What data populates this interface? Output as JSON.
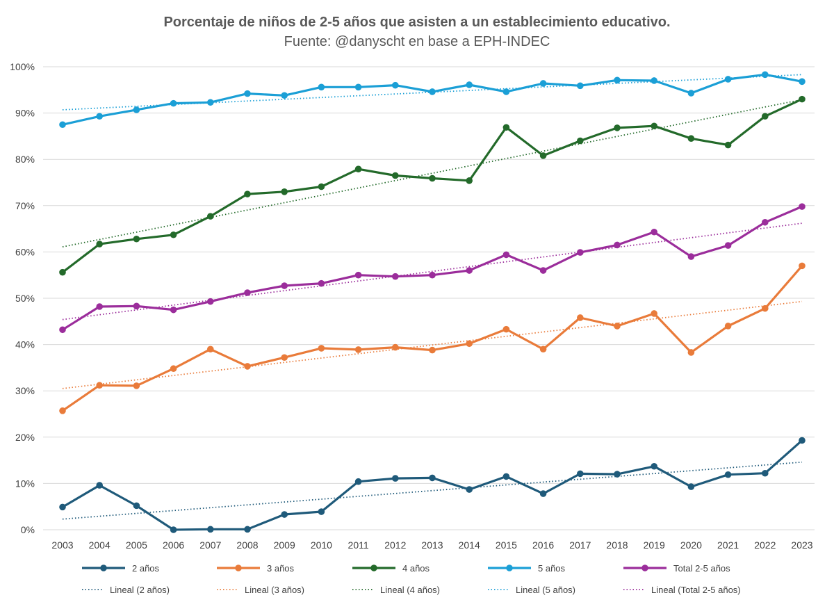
{
  "chart_data": {
    "type": "line",
    "title": "Porcentaje de niños de 2-5 años que asisten a un establecimiento educativo.",
    "subtitle": "Fuente: @danyscht en base a EPH-INDEC",
    "x": [
      "2003",
      "2004",
      "2005",
      "2006",
      "2007",
      "2008",
      "2009",
      "2010",
      "2011",
      "2012",
      "2013",
      "2014",
      "2015",
      "2016",
      "2017",
      "2018",
      "2019",
      "2020",
      "2021",
      "2022",
      "2023"
    ],
    "ylim": [
      0,
      100
    ],
    "yticks": [
      0,
      10,
      20,
      30,
      40,
      50,
      60,
      70,
      80,
      90,
      100
    ],
    "ytick_labels": [
      "0%",
      "10%",
      "20%",
      "30%",
      "40%",
      "50%",
      "60%",
      "70%",
      "80%",
      "90%",
      "100%"
    ],
    "grid": true,
    "legend_position": "bottom",
    "series": [
      {
        "name": "2 años",
        "color": "#1f5a7a",
        "values": [
          4.9,
          9.6,
          5.2,
          0.0,
          0.1,
          0.1,
          3.3,
          3.9,
          10.4,
          11.1,
          11.2,
          8.7,
          11.5,
          7.8,
          12.1,
          12.0,
          13.7,
          9.3,
          11.9,
          12.2,
          19.3
        ]
      },
      {
        "name": "3 años",
        "color": "#e97b3a",
        "values": [
          25.7,
          31.2,
          31.1,
          34.8,
          39.0,
          35.3,
          37.2,
          39.2,
          38.9,
          39.4,
          38.8,
          40.2,
          43.3,
          39.0,
          45.8,
          44.0,
          46.7,
          38.3,
          44.0,
          47.8,
          57.0
        ]
      },
      {
        "name": "4 años",
        "color": "#236a2a",
        "values": [
          55.6,
          61.7,
          62.8,
          63.7,
          67.7,
          72.5,
          73.0,
          74.1,
          77.9,
          76.5,
          75.9,
          75.4,
          86.9,
          80.8,
          84.0,
          86.8,
          87.2,
          84.5,
          83.1,
          89.3,
          93.0
        ]
      },
      {
        "name": "5 años",
        "color": "#1b9fd6",
        "values": [
          87.5,
          89.3,
          90.7,
          92.1,
          92.3,
          94.2,
          93.8,
          95.6,
          95.6,
          96.0,
          94.6,
          96.1,
          94.6,
          96.4,
          95.9,
          97.1,
          97.0,
          94.3,
          97.3,
          98.3,
          96.8
        ]
      },
      {
        "name": "Total 2-5 años",
        "color": "#9b2d9b",
        "values": [
          43.2,
          48.2,
          48.3,
          47.5,
          49.3,
          51.2,
          52.7,
          53.2,
          55.0,
          54.7,
          55.0,
          56.0,
          59.4,
          56.0,
          59.9,
          61.5,
          64.3,
          59.0,
          61.4,
          66.4,
          69.8
        ]
      }
    ],
    "trendlines": [
      {
        "name": "Lineal (2 años)",
        "color": "#1f5a7a",
        "start": 2.3,
        "end": 14.6
      },
      {
        "name": "Lineal (3 años)",
        "color": "#e97b3a",
        "start": 30.5,
        "end": 49.3
      },
      {
        "name": "Lineal (4 años)",
        "color": "#236a2a",
        "start": 61.1,
        "end": 92.9
      },
      {
        "name": "Lineal (5 años)",
        "color": "#1b9fd6",
        "start": 90.7,
        "end": 98.3
      },
      {
        "name": "Lineal (Total 2-5 años)",
        "color": "#9b2d9b",
        "start": 45.4,
        "end": 66.2
      }
    ]
  }
}
